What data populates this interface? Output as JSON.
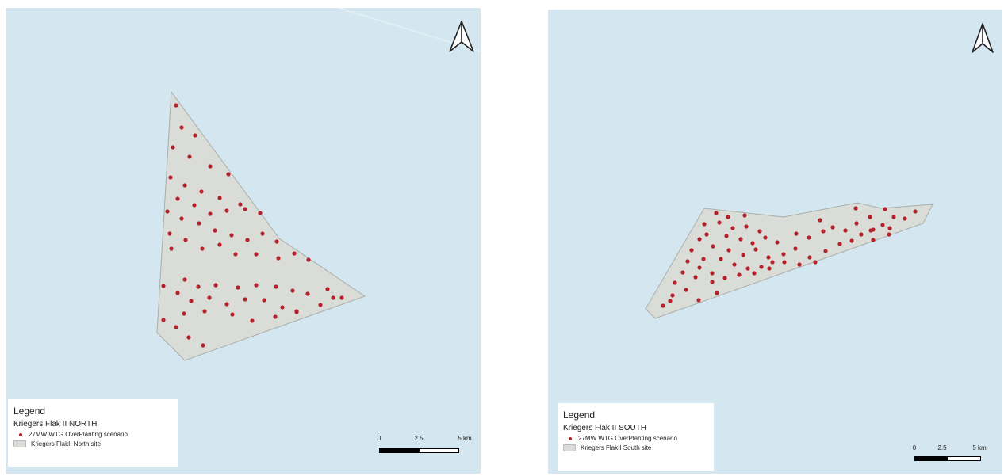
{
  "colors": {
    "sea": "#d4e6ef",
    "site_fill": "#d9dcd7",
    "site_stroke": "#a9aeab",
    "turbine": "#b5212b"
  },
  "icons": {
    "north_arrow": "north-arrow-icon"
  },
  "panels": [
    {
      "legend": {
        "title": "Legend",
        "group": "Kriegers Flak II NORTH",
        "turbine_label": "27MW WTG OverPlanting scenario",
        "site_label": "Kriegers FlakII North site"
      },
      "scalebar": {
        "labels": [
          "0",
          "2.5",
          "5 km"
        ]
      }
    },
    {
      "legend": {
        "title": "Legend",
        "group": "Kriegers Flak II SOUTH",
        "turbine_label": "27MW WTG OverPlanting scenario",
        "site_label": "Kriegers FlakII South site"
      },
      "scalebar": {
        "labels": [
          "0",
          "2.5",
          "5 km"
        ]
      }
    }
  ]
}
